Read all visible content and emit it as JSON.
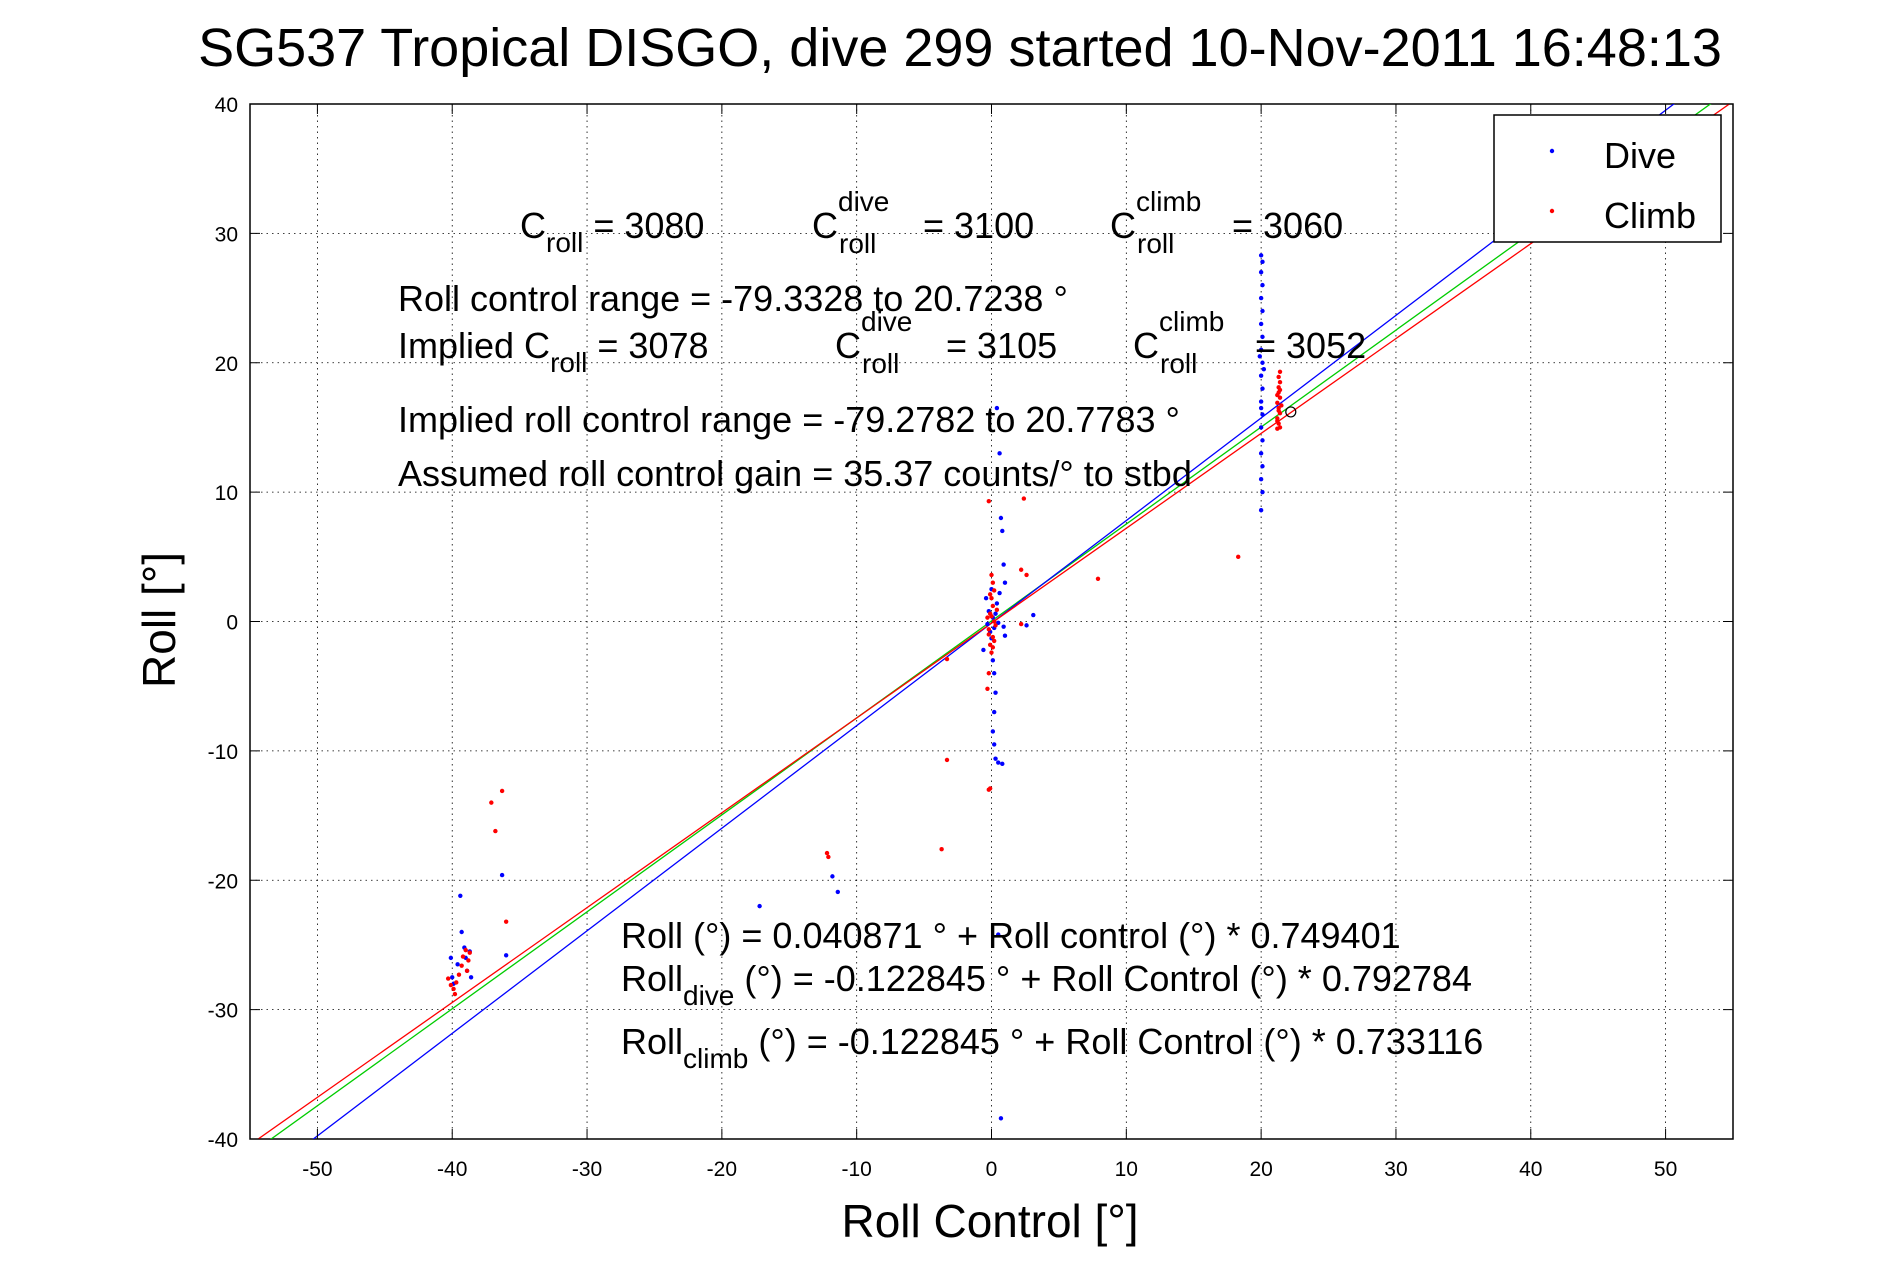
{
  "chart_data": {
    "type": "scatter",
    "title": "SG537 Tropical DISGO, dive 299 started 10-Nov-2011 16:48:13",
    "xlabel": "Roll Control [°]",
    "ylabel": "Roll [°]",
    "xlim": [
      -55,
      55
    ],
    "ylim": [
      -40,
      40
    ],
    "xticks": [
      -50,
      -40,
      -30,
      -20,
      -10,
      0,
      10,
      20,
      30,
      40,
      50
    ],
    "yticks": [
      -40,
      -30,
      -20,
      -10,
      0,
      10,
      20,
      30,
      40
    ],
    "grid": true,
    "legend_position": "top-right",
    "series": [
      {
        "name": "Dive",
        "color": "#0000ff",
        "points": [
          [
            -40.1,
            -26.0
          ],
          [
            -40.0,
            -27.5
          ],
          [
            -39.9,
            -28.0
          ],
          [
            -39.6,
            -26.5
          ],
          [
            -39.4,
            -21.2
          ],
          [
            -39.3,
            -24.0
          ],
          [
            -39.1,
            -25.2
          ],
          [
            -39.0,
            -26.0
          ],
          [
            -38.9,
            -27.0
          ],
          [
            -38.7,
            -25.5
          ],
          [
            -38.6,
            -27.5
          ],
          [
            -36.3,
            -19.6
          ],
          [
            -36.0,
            -25.8
          ],
          [
            -17.2,
            -22.0
          ],
          [
            -11.8,
            -19.7
          ],
          [
            -11.4,
            -20.9
          ],
          [
            0.0,
            -1.3
          ],
          [
            0.1,
            -3.0
          ],
          [
            0.2,
            -4.0
          ],
          [
            0.3,
            -5.5
          ],
          [
            0.2,
            -7.0
          ],
          [
            0.1,
            -8.5
          ],
          [
            0.2,
            -9.5
          ],
          [
            0.3,
            -10.6
          ],
          [
            0.5,
            -10.9
          ],
          [
            0.8,
            -11.0
          ],
          [
            0.5,
            -24.2
          ],
          [
            0.7,
            -38.4
          ],
          [
            0.4,
            16.5
          ],
          [
            0.6,
            13.0
          ],
          [
            0.7,
            8.0
          ],
          [
            0.8,
            7.0
          ],
          [
            0.9,
            4.4
          ],
          [
            1.0,
            3.0
          ],
          [
            0.6,
            2.2
          ],
          [
            0.4,
            1.4
          ],
          [
            0.3,
            0.6
          ],
          [
            0.2,
            -0.5
          ],
          [
            0.1,
            0.3
          ],
          [
            -0.2,
            0.8
          ],
          [
            -0.3,
            -0.2
          ],
          [
            -0.4,
            1.8
          ],
          [
            0.9,
            -0.4
          ],
          [
            1.0,
            -1.1
          ],
          [
            3.1,
            0.5
          ],
          [
            2.6,
            -0.3
          ],
          [
            -0.6,
            -2.2
          ],
          [
            0.0,
            2.5
          ],
          [
            -0.1,
            -0.8
          ],
          [
            0.5,
            -0.1
          ],
          [
            20.0,
            28.3
          ],
          [
            20.1,
            27.8
          ],
          [
            20.0,
            27.0
          ],
          [
            20.1,
            26.0
          ],
          [
            20.0,
            25.0
          ],
          [
            20.1,
            24.0
          ],
          [
            20.0,
            23.0
          ],
          [
            20.1,
            22.0
          ],
          [
            20.0,
            21.0
          ],
          [
            20.1,
            20.0
          ],
          [
            20.0,
            19.0
          ],
          [
            20.1,
            18.0
          ],
          [
            20.0,
            17.0
          ],
          [
            20.1,
            16.0
          ],
          [
            20.0,
            15.0
          ],
          [
            20.1,
            14.0
          ],
          [
            20.0,
            13.0
          ],
          [
            20.1,
            12.0
          ],
          [
            20.0,
            11.0
          ],
          [
            20.1,
            10.0
          ],
          [
            20.0,
            8.6
          ],
          [
            19.9,
            20.5
          ],
          [
            20.2,
            19.5
          ],
          [
            20.0,
            16.5
          ]
        ]
      },
      {
        "name": "Climb",
        "color": "#ff0000",
        "points": [
          [
            -40.3,
            -27.6
          ],
          [
            -40.1,
            -28.1
          ],
          [
            -39.9,
            -28.4
          ],
          [
            -39.7,
            -27.9
          ],
          [
            -39.5,
            -27.3
          ],
          [
            -39.3,
            -26.6
          ],
          [
            -39.2,
            -25.9
          ],
          [
            -39.0,
            -25.4
          ],
          [
            -38.8,
            -26.2
          ],
          [
            -38.7,
            -25.6
          ],
          [
            -38.9,
            -27.0
          ],
          [
            -39.8,
            -28.8
          ],
          [
            -37.1,
            -14.0
          ],
          [
            -36.8,
            -16.2
          ],
          [
            -36.3,
            -13.1
          ],
          [
            -36.0,
            -23.2
          ],
          [
            -12.2,
            -17.9
          ],
          [
            -12.1,
            -18.2
          ],
          [
            -3.3,
            -10.7
          ],
          [
            -3.3,
            -2.9
          ],
          [
            -3.7,
            -17.6
          ],
          [
            2.4,
            9.5
          ],
          [
            2.6,
            3.6
          ],
          [
            2.2,
            4.0
          ],
          [
            2.2,
            -0.2
          ],
          [
            7.9,
            3.3
          ],
          [
            -0.2,
            9.3
          ],
          [
            -0.1,
            -12.9
          ],
          [
            -0.2,
            -13.0
          ],
          [
            -0.3,
            -5.2
          ],
          [
            -0.2,
            -4.0
          ],
          [
            0.0,
            -2.4
          ],
          [
            -0.1,
            -1.8
          ],
          [
            0.1,
            -1.2
          ],
          [
            -0.2,
            -0.6
          ],
          [
            0.2,
            0.0
          ],
          [
            -0.1,
            0.6
          ],
          [
            0.1,
            1.2
          ],
          [
            0.0,
            1.8
          ],
          [
            0.2,
            2.4
          ],
          [
            0.1,
            3.0
          ],
          [
            0.0,
            3.6
          ],
          [
            -0.2,
            -1.0
          ],
          [
            0.3,
            -0.3
          ],
          [
            -0.3,
            0.3
          ],
          [
            0.4,
            0.9
          ],
          [
            0.2,
            -1.5
          ],
          [
            -0.1,
            2.1
          ],
          [
            0.1,
            -2.0
          ],
          [
            0.0,
            0.4
          ],
          [
            18.3,
            5.0
          ],
          [
            21.2,
            14.9
          ],
          [
            21.3,
            15.3
          ],
          [
            21.2,
            15.7
          ],
          [
            21.4,
            16.1
          ],
          [
            21.3,
            16.5
          ],
          [
            21.2,
            16.9
          ],
          [
            21.4,
            17.3
          ],
          [
            21.3,
            17.7
          ],
          [
            21.3,
            18.1
          ],
          [
            21.4,
            18.5
          ],
          [
            21.3,
            18.9
          ],
          [
            21.4,
            19.3
          ],
          [
            21.2,
            15.5
          ],
          [
            21.5,
            16.7
          ],
          [
            21.2,
            17.5
          ],
          [
            21.4,
            15.0
          ],
          [
            21.3,
            16.3
          ],
          [
            21.4,
            17.9
          ]
        ]
      }
    ],
    "fit_lines": [
      {
        "label": "all",
        "color": "#00cc00",
        "intercept": 0.040871,
        "slope": 0.749401
      },
      {
        "label": "dive",
        "color": "#0000ff",
        "intercept": -0.122845,
        "slope": 0.792784
      },
      {
        "label": "climb",
        "color": "#ff0000",
        "intercept": -0.122845,
        "slope": 0.733116
      }
    ],
    "markers": [
      {
        "symbol": "o",
        "x": 22.2,
        "y": 16.2
      }
    ],
    "annotations": {
      "c_roll": {
        "base": "C",
        "sub": "roll",
        "value": " = 3080"
      },
      "c_roll_dive": {
        "base": "C",
        "sup": "dive",
        "sub": "roll",
        "value": " = 3100"
      },
      "c_roll_climb": {
        "base": "C",
        "sup": "climb",
        "sub": "roll",
        "value": " = 3060"
      },
      "roll_control_range": "Roll control range = -79.3328 to 20.7238 °",
      "implied_c_roll": {
        "base": "Implied C",
        "sub": "roll",
        "value": " = 3078"
      },
      "implied_c_roll_dive": {
        "base": "C",
        "sup": "dive",
        "sub": "roll",
        "value": " = 3105"
      },
      "implied_c_roll_climb": {
        "base": "C",
        "sup": "climb",
        "sub": "roll",
        "value": " = 3052"
      },
      "implied_range": "Implied roll control range = -79.2782 to 20.7783 °",
      "assumed_gain": "Assumed roll control gain = 35.37 counts/° to stbd",
      "fit_all": "Roll (°) = 0.040871 ° + Roll control (°) * 0.749401",
      "fit_dive": {
        "base": "Roll",
        "sub": "dive",
        "rest": " (°) = -0.122845 ° + Roll Control (°) * 0.792784"
      },
      "fit_climb": {
        "base": "Roll",
        "sub": "climb",
        "rest": " (°) = -0.122845 ° + Roll Control (°) * 0.733116"
      }
    }
  }
}
